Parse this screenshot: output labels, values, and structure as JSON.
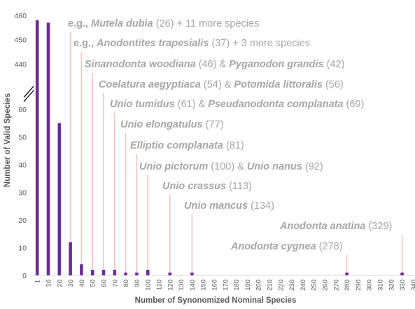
{
  "chart_data": {
    "type": "bar",
    "title": "",
    "xlabel": "Number of Synonomized Nominal Species",
    "ylabel": "Number of Valid Species",
    "colors": {
      "bar": "#6b2d96",
      "leader": "#f2c4c4",
      "annotation_text": "#a6a6a6",
      "axis_text": "#595959",
      "axis_line": "#d9d9d9"
    },
    "axis_break": {
      "lower_range": [
        0,
        60
      ],
      "upper_range": [
        430,
        460
      ]
    },
    "y_ticks_lower": [
      "0",
      "10",
      "20",
      "30",
      "40",
      "50",
      "60"
    ],
    "y_ticks_upper": [
      "440",
      "450",
      "460"
    ],
    "categories": [
      "1",
      "10",
      "20",
      "30",
      "40",
      "50",
      "60",
      "70",
      "80",
      "90",
      "100",
      "110",
      "120",
      "130",
      "140",
      "150",
      "160",
      "170",
      "180",
      "190",
      "200",
      "210",
      "220",
      "230",
      "240",
      "250",
      "260",
      "270",
      "280",
      "290",
      "300",
      "310",
      "320",
      "330",
      "340"
    ],
    "values": [
      458,
      457,
      55,
      12,
      4,
      2,
      2,
      2,
      1,
      1,
      2,
      0,
      1,
      0,
      1,
      0,
      0,
      0,
      0,
      0,
      0,
      0,
      0,
      0,
      0,
      0,
      0,
      0,
      1,
      0,
      0,
      0,
      0,
      1,
      0
    ],
    "annotations": [
      {
        "category": "30",
        "parts": [
          {
            "t": "e.g., ",
            "b": true,
            "i": false
          },
          {
            "t": "Mutela dubia",
            "b": true,
            "i": true
          },
          {
            "t": " (26) + 11 more species",
            "b": false,
            "i": false
          }
        ]
      },
      {
        "category": "40",
        "parts": [
          {
            "t": "e.g., ",
            "b": true,
            "i": false
          },
          {
            "t": "Anodontites trapesialis",
            "b": true,
            "i": true
          },
          {
            "t": " (37) + 3 more species",
            "b": false,
            "i": false
          }
        ]
      },
      {
        "category": "50",
        "parts": [
          {
            "t": "Sinanodonta woodiana",
            "b": true,
            "i": true
          },
          {
            "t": " (46) & ",
            "b": false,
            "i": false
          },
          {
            "t": "Pyganodon grandis",
            "b": true,
            "i": true
          },
          {
            "t": " (42)",
            "b": false,
            "i": false
          }
        ]
      },
      {
        "category": "60",
        "parts": [
          {
            "t": "Coelatura aegyptiaca",
            "b": true,
            "i": true
          },
          {
            "t": " (54) & ",
            "b": false,
            "i": false
          },
          {
            "t": "Potomida littoralis",
            "b": true,
            "i": true
          },
          {
            "t": " (56)",
            "b": false,
            "i": false
          }
        ]
      },
      {
        "category": "70",
        "parts": [
          {
            "t": "Unio tumidus",
            "b": true,
            "i": true
          },
          {
            "t": " (61) & ",
            "b": false,
            "i": false
          },
          {
            "t": "Pseudanodonta complanata",
            "b": true,
            "i": true
          },
          {
            "t": " (69)",
            "b": false,
            "i": false
          }
        ]
      },
      {
        "category": "80",
        "parts": [
          {
            "t": "Unio elongatulus",
            "b": true,
            "i": true
          },
          {
            "t": " (77)",
            "b": false,
            "i": false
          }
        ]
      },
      {
        "category": "90",
        "parts": [
          {
            "t": "Elliptio complanata",
            "b": true,
            "i": true
          },
          {
            "t": " (81)",
            "b": false,
            "i": false
          }
        ]
      },
      {
        "category": "100",
        "parts": [
          {
            "t": "Unio pictorum",
            "b": true,
            "i": true
          },
          {
            "t": " (100) & ",
            "b": false,
            "i": false
          },
          {
            "t": "Unio nanus",
            "b": true,
            "i": true
          },
          {
            "t": " (92)",
            "b": false,
            "i": false
          }
        ]
      },
      {
        "category": "120",
        "parts": [
          {
            "t": "Unio crassus",
            "b": true,
            "i": true
          },
          {
            "t": " (113)",
            "b": false,
            "i": false
          }
        ]
      },
      {
        "category": "140",
        "parts": [
          {
            "t": "Unio mancus",
            "b": true,
            "i": true
          },
          {
            "t": " (134)",
            "b": false,
            "i": false
          }
        ]
      },
      {
        "category": "330",
        "parts": [
          {
            "t": "Anodonta anatina",
            "b": true,
            "i": true
          },
          {
            "t": " (329)",
            "b": false,
            "i": false
          }
        ]
      },
      {
        "category": "280",
        "parts": [
          {
            "t": "Anodonta cygnea",
            "b": true,
            "i": true
          },
          {
            "t": " (278)",
            "b": false,
            "i": false
          }
        ]
      }
    ]
  }
}
